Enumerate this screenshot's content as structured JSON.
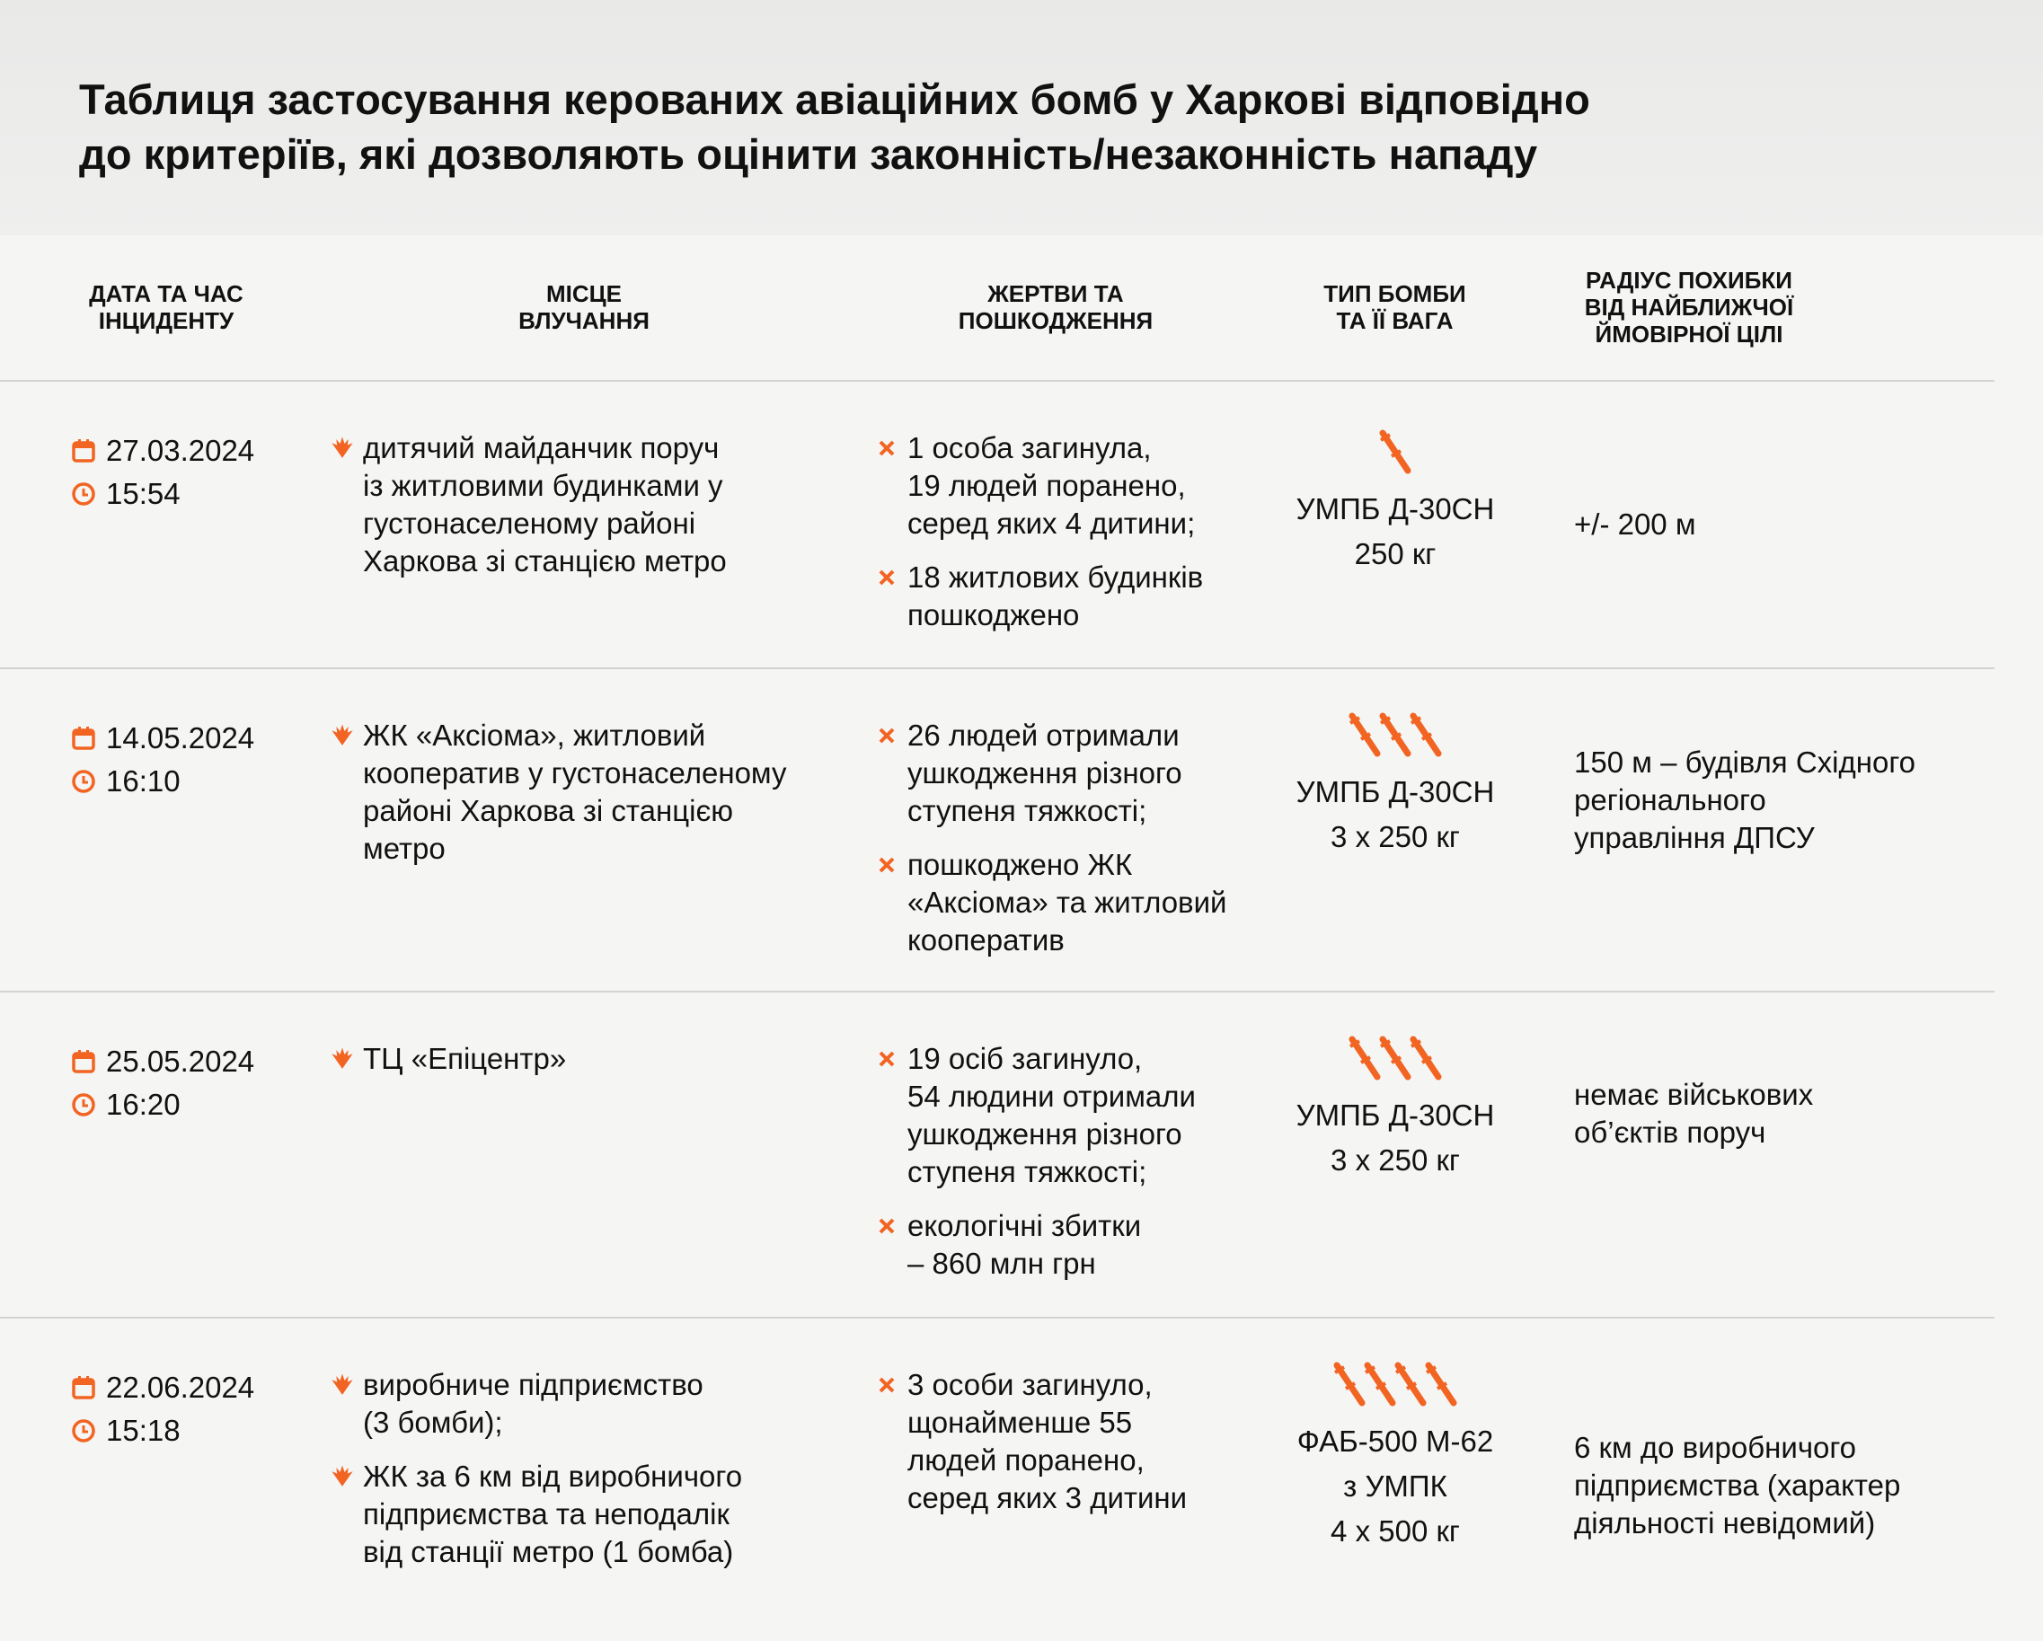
{
  "title": [
    "Таблиця застосування керованих авіаційних бомб у Харкові відповідно",
    "до критеріїв, які дозволяють оцінити законність/незаконність нападу"
  ],
  "headers": {
    "date": [
      "Дата та час",
      "інциденту"
    ],
    "place": [
      "Місце",
      "влучання"
    ],
    "victims": [
      "Жертви та",
      "пошкодження"
    ],
    "bomb": [
      "Тип бомби",
      "та її вага"
    ],
    "radius": [
      "Радіус похибки",
      "від найближчої",
      "ймовірної цілі"
    ]
  },
  "accent": "#f26422",
  "rows": [
    {
      "date": "27.03.2024",
      "time": "15:54",
      "place": [
        [
          "дитячий майданчик поруч",
          "із житловими будинками у",
          "густонаселеному районі",
          "Харкова зі станцією метро"
        ]
      ],
      "victims": [
        [
          "1 особа загинула,",
          "19 людей поранено,",
          "серед яких 4 дитини;"
        ],
        [
          "18 житлових будинків",
          "пошкоджено"
        ]
      ],
      "bomb_count": 1,
      "bomb": [
        "УМПБ Д-30СН",
        "250 кг"
      ],
      "radius": [
        "+/- 200 м"
      ]
    },
    {
      "date": "14.05.2024",
      "time": "16:10",
      "place": [
        [
          "ЖК «Аксіома», житловий",
          "кооператив у густонаселеному",
          "районі Харкова зі станцією",
          "метро"
        ]
      ],
      "victims": [
        [
          "26 людей отримали",
          "ушкодження різного",
          "ступеня тяжкості;"
        ],
        [
          "пошкоджено ЖК",
          "«Аксіома» та житловий",
          "кооператив"
        ]
      ],
      "bomb_count": 3,
      "bomb": [
        "УМПБ Д-30СН",
        "3 х 250 кг"
      ],
      "radius": [
        "150 м – будівля Східного",
        "регіонального",
        "управління ДПСУ"
      ]
    },
    {
      "date": "25.05.2024",
      "time": "16:20",
      "place": [
        [
          "ТЦ «Епіцентр»"
        ]
      ],
      "victims": [
        [
          "19 осіб загинуло,",
          "54 людини отримали",
          "ушкодження різного",
          "ступеня тяжкості;"
        ],
        [
          "екологічні збитки",
          "– 860 млн грн"
        ]
      ],
      "bomb_count": 3,
      "bomb": [
        "УМПБ Д-30СН",
        "3 х 250 кг"
      ],
      "radius": [
        "немає військових",
        "об’єктів поруч"
      ]
    },
    {
      "date": "22.06.2024",
      "time": "15:18",
      "place": [
        [
          "виробниче підприємство",
          "(3 бомби);"
        ],
        [
          "ЖК за 6 км від виробничого",
          "підприємства та неподалік",
          "від станції метро (1 бомба)"
        ]
      ],
      "victims": [
        [
          "3 особи загинуло,",
          "щонайменше 55",
          "людей поранено,",
          "серед яких 3 дитини"
        ]
      ],
      "bomb_count": 4,
      "bomb": [
        "ФАБ-500 М-62",
        "з УМПК",
        "4 х 500 кг"
      ],
      "radius": [
        "6 км до виробничого",
        "підприємства (характер",
        "діяльності невідомий)"
      ]
    }
  ]
}
